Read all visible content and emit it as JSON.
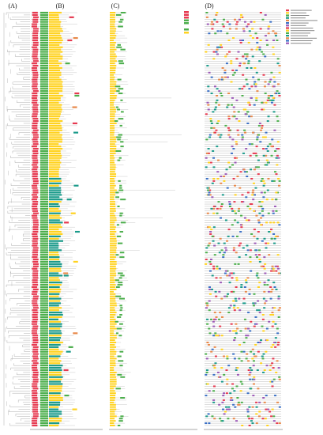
{
  "panels": [
    {
      "label": "(A)"
    },
    {
      "label": "(B)"
    },
    {
      "label": "(C)"
    },
    {
      "label": "(D)"
    }
  ]
}
